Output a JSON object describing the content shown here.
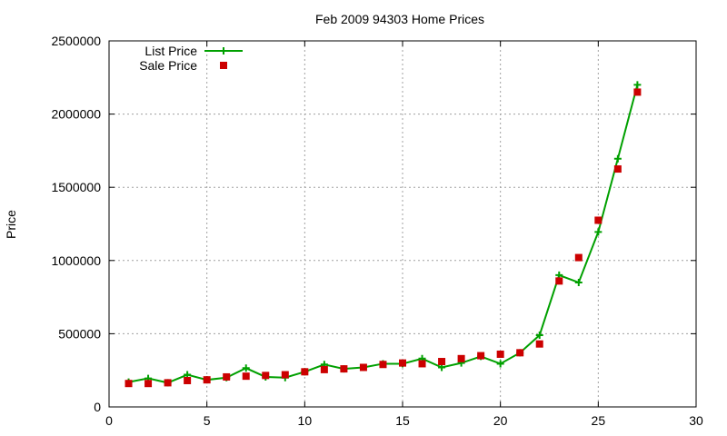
{
  "chart_data": {
    "type": "line",
    "title": "Feb 2009 94303 Home Prices",
    "xlabel": "",
    "ylabel": "Price",
    "xlim": [
      0,
      30
    ],
    "ylim": [
      0,
      2500000
    ],
    "xticks": [
      0,
      5,
      10,
      15,
      20,
      25,
      30
    ],
    "yticks": [
      0,
      500000,
      1000000,
      1500000,
      2000000,
      2500000
    ],
    "grid": true,
    "legend_position": "top-left",
    "series": [
      {
        "name": "List Price",
        "style": "lines+points",
        "color": "#00a000",
        "marker": "plus",
        "x": [
          1,
          2,
          3,
          4,
          5,
          6,
          7,
          8,
          9,
          10,
          11,
          12,
          13,
          14,
          15,
          16,
          17,
          18,
          19,
          20,
          21,
          22,
          23,
          24,
          25,
          26,
          27
        ],
        "y": [
          170000,
          195000,
          165000,
          220000,
          185000,
          200000,
          265000,
          205000,
          200000,
          240000,
          290000,
          260000,
          270000,
          295000,
          295000,
          330000,
          270000,
          300000,
          345000,
          295000,
          370000,
          490000,
          900000,
          850000,
          1195000,
          1695000,
          2200000
        ]
      },
      {
        "name": "Sale Price",
        "style": "points",
        "color": "#cc0000",
        "marker": "square",
        "x": [
          1,
          2,
          3,
          4,
          5,
          6,
          7,
          8,
          9,
          10,
          11,
          12,
          13,
          14,
          15,
          16,
          17,
          18,
          19,
          20,
          21,
          22,
          23,
          24,
          25,
          26,
          27
        ],
        "y": [
          160000,
          160000,
          165000,
          180000,
          185000,
          205000,
          210000,
          215000,
          220000,
          240000,
          255000,
          260000,
          270000,
          290000,
          300000,
          295000,
          310000,
          330000,
          350000,
          360000,
          370000,
          430000,
          860000,
          1020000,
          1275000,
          1625000,
          2150000
        ]
      }
    ]
  }
}
